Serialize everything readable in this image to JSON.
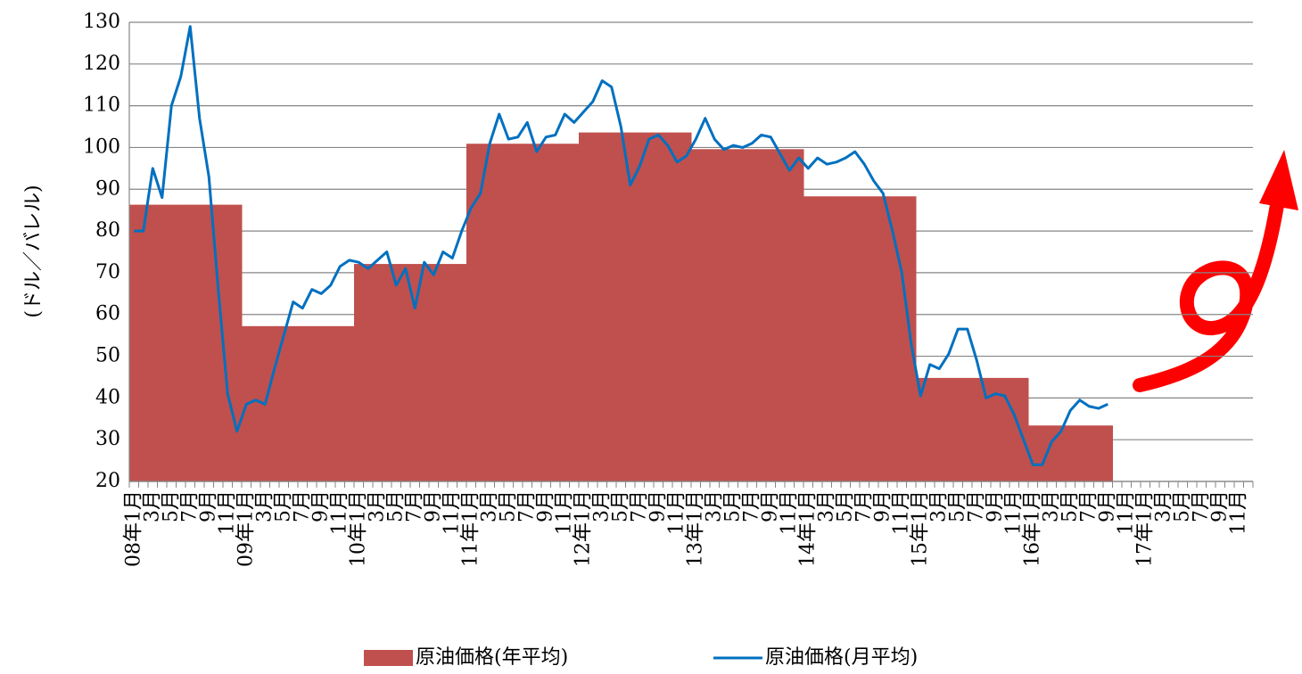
{
  "chart_data": {
    "type": "bar",
    "y_label": "(ドル／バレル)",
    "categories": [
      "08年1月",
      null,
      "3月",
      null,
      "5月",
      null,
      "7月",
      null,
      "9月",
      null,
      "11月",
      null,
      "09年1月",
      null,
      "3月",
      null,
      "5月",
      null,
      "7月",
      null,
      "9月",
      null,
      "11月",
      null,
      "10年1月",
      null,
      "3月",
      null,
      "5月",
      null,
      "7月",
      null,
      "9月",
      null,
      "11月",
      null,
      "11年1月",
      null,
      "3月",
      null,
      "5月",
      null,
      "7月",
      null,
      "9月",
      null,
      "11月",
      null,
      "12年1月",
      null,
      "3月",
      null,
      "5月",
      null,
      "7月",
      null,
      "9月",
      null,
      "11月",
      null,
      "13年1月",
      null,
      "3月",
      null,
      "5月",
      null,
      "7月",
      null,
      "9月",
      null,
      "11月",
      null,
      "14年1月",
      null,
      "3月",
      null,
      "5月",
      null,
      "7月",
      null,
      "9月",
      null,
      "11月",
      null,
      "15年1月",
      null,
      "3月",
      null,
      "5月",
      null,
      "7月",
      null,
      "9月",
      null,
      "11月",
      null,
      "16年1月",
      null,
      "3月",
      null,
      "5月",
      null,
      "7月",
      null,
      "9月",
      null,
      "11月",
      null,
      "17年1月",
      null,
      "3月",
      null,
      "5月",
      null,
      "7月",
      null,
      "9月",
      null,
      "11月",
      null
    ],
    "series": [
      {
        "name": "原油価格(年平均)",
        "type": "bar",
        "color": "#c0504d",
        "values": [
          86.3,
          86.3,
          86.3,
          86.3,
          86.3,
          86.3,
          86.3,
          86.3,
          86.3,
          86.3,
          86.3,
          86.3,
          57.2,
          57.2,
          57.2,
          57.2,
          57.2,
          57.2,
          57.2,
          57.2,
          57.2,
          57.2,
          57.2,
          57.2,
          72.1,
          72.1,
          72.1,
          72.1,
          72.1,
          72.1,
          72.1,
          72.1,
          72.1,
          72.1,
          72.1,
          72.1,
          100.9,
          100.9,
          100.9,
          100.9,
          100.9,
          100.9,
          100.9,
          100.9,
          100.9,
          100.9,
          100.9,
          100.9,
          103.6,
          103.6,
          103.6,
          103.6,
          103.6,
          103.6,
          103.6,
          103.6,
          103.6,
          103.6,
          103.6,
          103.6,
          99.6,
          99.6,
          99.6,
          99.6,
          99.6,
          99.6,
          99.6,
          99.6,
          99.6,
          99.6,
          99.6,
          99.6,
          88.3,
          88.3,
          88.3,
          88.3,
          88.3,
          88.3,
          88.3,
          88.3,
          88.3,
          88.3,
          88.3,
          88.3,
          44.8,
          44.8,
          44.8,
          44.8,
          44.8,
          44.8,
          44.8,
          44.8,
          44.8,
          44.8,
          44.8,
          44.8,
          33.4,
          33.4,
          33.4,
          33.4,
          33.4,
          33.4,
          33.4,
          33.4,
          33.4,
          null,
          null,
          null,
          null,
          null,
          null,
          null,
          null,
          null,
          null,
          null,
          null,
          null,
          null,
          null
        ]
      },
      {
        "name": "原油価格(月平均)",
        "type": "line",
        "color": "#0070c0",
        "values": [
          80,
          80,
          95,
          88,
          110,
          117,
          129,
          107,
          93,
          66,
          41,
          32,
          38.5,
          39.5,
          38.5,
          47,
          55,
          63,
          61.5,
          66,
          65,
          67,
          71.5,
          73,
          72.5,
          71,
          73,
          75,
          67,
          71,
          61.5,
          72.5,
          69.5,
          75,
          73.5,
          80,
          85.5,
          89,
          101,
          108,
          102,
          102.5,
          106,
          99,
          102.5,
          103,
          108,
          106,
          108.5,
          111,
          116,
          114.5,
          105,
          91,
          95.5,
          102,
          103,
          100.5,
          96.5,
          98,
          102,
          107,
          102,
          99.5,
          100.5,
          100,
          101,
          103,
          102.5,
          98.5,
          94.5,
          97.5,
          95,
          97.5,
          96,
          96.5,
          97.5,
          99,
          96,
          92,
          89,
          80,
          70,
          53,
          40.5,
          48,
          47,
          50.5,
          56.5,
          56.5,
          49,
          40,
          41,
          40.5,
          36,
          30,
          24,
          24,
          29.5,
          32,
          37,
          39.5,
          38,
          37.5,
          38.5,
          null,
          null,
          null,
          null,
          null,
          null,
          null,
          null,
          null,
          null,
          null,
          null,
          null,
          null,
          null
        ]
      }
    ],
    "ylim": [
      20,
      130
    ],
    "yticks": [
      20,
      30,
      40,
      50,
      60,
      70,
      80,
      90,
      100,
      110,
      120,
      130
    ],
    "grid": true,
    "legend": "bottom"
  }
}
